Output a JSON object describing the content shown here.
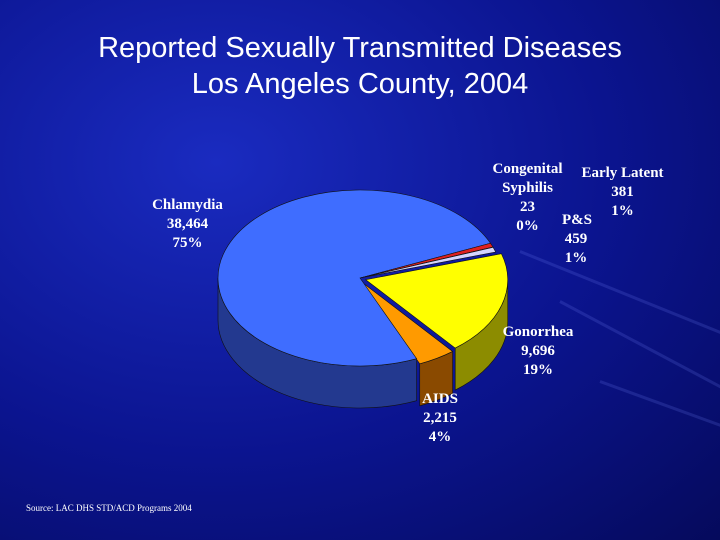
{
  "title_line1": "Reported Sexually Transmitted Diseases",
  "title_line2": "Los Angeles County, 2004",
  "source": "Source: LAC DHS STD/ACD Programs 2004",
  "chart_data": {
    "type": "pie",
    "title": "Reported Sexually Transmitted Diseases Los Angeles County, 2004",
    "slices": [
      {
        "name": "Chlamydia",
        "value": 38464,
        "value_label": "38,464",
        "percent": "75%",
        "color": "#3f6dff",
        "side": "#23398f"
      },
      {
        "name": "AIDS",
        "value": 2215,
        "value_label": "2,215",
        "percent": "4%",
        "color": "#ff9a00",
        "side": "#8a4a00"
      },
      {
        "name": "Gonorrhea",
        "value": 9696,
        "value_label": "9,696",
        "percent": "19%",
        "color": "#ffff00",
        "side": "#8c8c00"
      },
      {
        "name": "P&S",
        "value": 459,
        "value_label": "459",
        "percent": "1%",
        "color": "#d4d4ff",
        "side": "#7070a0"
      },
      {
        "name": "Congenital Syphilis",
        "name_line1": "Congenital",
        "name_line2": "Syphilis",
        "value": 23,
        "value_label": "23",
        "percent": "0%",
        "color": "#2b2bb0",
        "side": "#15155e"
      },
      {
        "name": "Early Latent",
        "value": 381,
        "value_label": "381",
        "percent": "1%",
        "color": "#e02020",
        "side": "#801010"
      }
    ]
  }
}
